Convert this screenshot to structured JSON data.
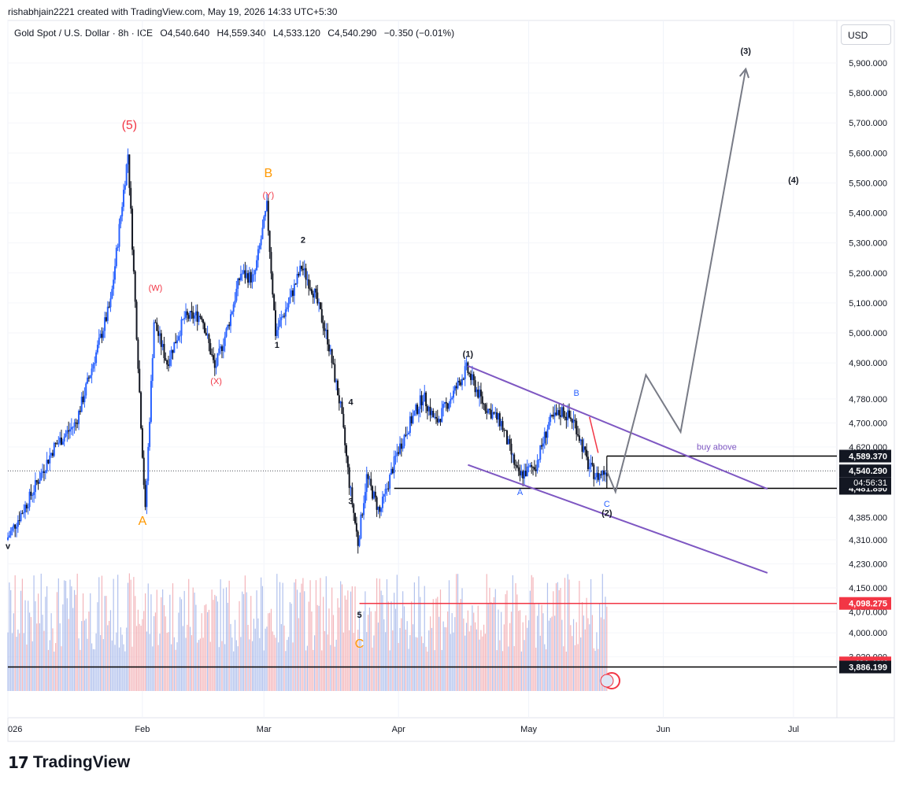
{
  "header": {
    "attribution": "rishabhjain2221 created with TradingView.com, May 19, 2026 14:33 UTC+5:30"
  },
  "symbol": {
    "title": "Gold Spot / U.S. Dollar · 8h · ICE",
    "open": "O4,540.640",
    "high": "H4,559.340",
    "low": "L4,533.120",
    "close": "C4,540.290",
    "change": "−0.350 (−0.01%)"
  },
  "currency_button": "USD",
  "footer": {
    "brand": "TradingView",
    "logo_glyph": "17"
  },
  "colors": {
    "up": "#2962ff",
    "down": "#131722",
    "channel": "#7e57c2",
    "projection": "#787b86",
    "red_level": "#f23645",
    "wave_red": "#f23645",
    "wave_orange": "#ff9800",
    "wave_blue": "#2962ff"
  },
  "chart_data": {
    "type": "candlestick",
    "title": "Gold Spot / U.S. Dollar · 8h · ICE",
    "timeframe": "8h",
    "currency": "USD",
    "x_tick_labels": [
      "026",
      "Feb",
      "Mar",
      "Apr",
      "May",
      "Jun",
      "Jul"
    ],
    "y_tick_labels": [
      5900,
      5800,
      5700,
      5600,
      5500,
      5400,
      5300,
      5200,
      5100,
      5000,
      4900,
      4780,
      4700,
      4620,
      4385,
      4310,
      4230,
      4150,
      4070,
      4000,
      3920,
      3885
    ],
    "ylim": [
      3850,
      5980
    ],
    "last_price": 4540.29,
    "countdown": "04:56:31",
    "price_tags": [
      {
        "label": "4,589.370",
        "value": 4589.37,
        "style": "black"
      },
      {
        "label": "4,540.290",
        "value": 4540.29,
        "style": "black"
      },
      {
        "label": "4,481.890",
        "value": 4481.89,
        "style": "black"
      },
      {
        "label": "4,098.275",
        "value": 4098.275,
        "style": "red"
      },
      {
        "label": "491.48K",
        "value": 3900,
        "style": "red"
      },
      {
        "label": "3,886.199",
        "value": 3886.199,
        "style": "black"
      }
    ],
    "volume_label": "491.48K",
    "price_path": [
      {
        "date": "2026-01-01",
        "price": 4310
      },
      {
        "date": "2026-01-06",
        "price": 4440
      },
      {
        "date": "2026-01-12",
        "price": 4620
      },
      {
        "date": "2026-01-17",
        "price": 4700
      },
      {
        "date": "2026-01-21",
        "price": 4900
      },
      {
        "date": "2026-01-25",
        "price": 5100
      },
      {
        "date": "2026-01-29",
        "price": 5598
      },
      {
        "date": "2026-02-02",
        "price": 4402
      },
      {
        "date": "2026-02-04",
        "price": 5040
      },
      {
        "date": "2026-02-07",
        "price": 4900
      },
      {
        "date": "2026-02-11",
        "price": 5050
      },
      {
        "date": "2026-02-15",
        "price": 5060
      },
      {
        "date": "2026-02-18",
        "price": 4880
      },
      {
        "date": "2026-02-21",
        "price": 5020
      },
      {
        "date": "2026-02-24",
        "price": 5200
      },
      {
        "date": "2026-02-27",
        "price": 5180
      },
      {
        "date": "2026-03-02",
        "price": 5420
      },
      {
        "date": "2026-03-04",
        "price": 5000
      },
      {
        "date": "2026-03-07",
        "price": 5100
      },
      {
        "date": "2026-03-10",
        "price": 5220
      },
      {
        "date": "2026-03-13",
        "price": 5130
      },
      {
        "date": "2026-03-16",
        "price": 4980
      },
      {
        "date": "2026-03-19",
        "price": 4750
      },
      {
        "date": "2026-03-21",
        "price": 4500
      },
      {
        "date": "2026-03-23",
        "price": 4300
      },
      {
        "date": "2026-03-25",
        "price": 4520
      },
      {
        "date": "2026-03-28",
        "price": 4400
      },
      {
        "date": "2026-04-01",
        "price": 4600
      },
      {
        "date": "2026-04-04",
        "price": 4700
      },
      {
        "date": "2026-04-07",
        "price": 4790
      },
      {
        "date": "2026-04-10",
        "price": 4700
      },
      {
        "date": "2026-04-14",
        "price": 4800
      },
      {
        "date": "2026-04-17",
        "price": 4880
      },
      {
        "date": "2026-04-21",
        "price": 4760
      },
      {
        "date": "2026-04-25",
        "price": 4700
      },
      {
        "date": "2026-04-29",
        "price": 4520
      },
      {
        "date": "2026-05-03",
        "price": 4560
      },
      {
        "date": "2026-05-06",
        "price": 4700
      },
      {
        "date": "2026-05-09",
        "price": 4740
      },
      {
        "date": "2026-05-12",
        "price": 4700
      },
      {
        "date": "2026-05-15",
        "price": 4560
      },
      {
        "date": "2026-05-17",
        "price": 4520
      },
      {
        "date": "2026-05-19",
        "price": 4540
      }
    ],
    "projection": [
      {
        "date": "2026-05-19",
        "price": 4540
      },
      {
        "date": "2026-05-21",
        "price": 4470
      },
      {
        "date": "2026-05-28",
        "price": 4860
      },
      {
        "date": "2026-06-05",
        "price": 4670
      },
      {
        "date": "2026-06-20",
        "price": 5880
      }
    ],
    "channel_upper": [
      {
        "date": "2026-04-17",
        "price": 4890
      },
      {
        "date": "2026-06-25",
        "price": 4480
      }
    ],
    "channel_lower": [
      {
        "date": "2026-04-17",
        "price": 4560
      },
      {
        "date": "2026-06-25",
        "price": 4200
      }
    ],
    "levels": [
      {
        "name": "buy-above",
        "price": 4589.37,
        "from": "2026-05-19",
        "label": "buy above"
      },
      {
        "name": "support",
        "price": 4481.89,
        "from": "2026-03-31"
      },
      {
        "name": "red-level",
        "price": 4098.275,
        "from": "2026-03-23"
      },
      {
        "name": "bottom-level",
        "price": 3886.199,
        "from": "2026-01-01"
      }
    ],
    "wave_labels": [
      {
        "text": "(5)",
        "date": "2026-01-29",
        "price": 5680,
        "color": "red",
        "size": 16
      },
      {
        "text": "A",
        "date": "2026-02-01",
        "price": 4360,
        "color": "orange",
        "size": 16
      },
      {
        "text": "(W)",
        "date": "2026-02-04",
        "price": 5140,
        "color": "red",
        "size": 11
      },
      {
        "text": "(X)",
        "date": "2026-02-18",
        "price": 4830,
        "color": "red",
        "size": 11
      },
      {
        "text": "B",
        "date": "2026-03-02",
        "price": 5520,
        "color": "orange",
        "size": 16
      },
      {
        "text": "(Y)",
        "date": "2026-03-02",
        "price": 5450,
        "color": "red",
        "size": 11
      },
      {
        "text": "1",
        "date": "2026-03-04",
        "price": 4950,
        "color": "black",
        "size": 11
      },
      {
        "text": "2",
        "date": "2026-03-10",
        "price": 5300,
        "color": "black",
        "size": 11
      },
      {
        "text": "4",
        "date": "2026-03-21",
        "price": 4760,
        "color": "black",
        "size": 11
      },
      {
        "text": "3",
        "date": "2026-03-21",
        "price": 4430,
        "color": "black",
        "size": 11
      },
      {
        "text": "5",
        "date": "2026-03-23",
        "price": 4050,
        "color": "black",
        "size": 11
      },
      {
        "text": "C",
        "date": "2026-03-23",
        "price": 3950,
        "color": "orange",
        "size": 16
      },
      {
        "text": "(1)",
        "date": "2026-04-17",
        "price": 4920,
        "color": "black",
        "size": 11
      },
      {
        "text": "A",
        "date": "2026-04-29",
        "price": 4460,
        "color": "blue",
        "size": 11
      },
      {
        "text": "B",
        "date": "2026-05-12",
        "price": 4790,
        "color": "blue",
        "size": 11
      },
      {
        "text": "C",
        "date": "2026-05-19",
        "price": 4420,
        "color": "blue",
        "size": 11
      },
      {
        "text": "(2)",
        "date": "2026-05-19",
        "price": 4390,
        "color": "black",
        "size": 11
      },
      {
        "text": "(3)",
        "date": "2026-06-20",
        "price": 5930,
        "color": "black",
        "size": 11
      },
      {
        "text": "(4)",
        "date": "2026-07-01",
        "price": 5500,
        "color": "black",
        "size": 11
      },
      {
        "text": "v",
        "date": "2026-01-01",
        "price": 4280,
        "color": "black",
        "size": 11
      }
    ]
  }
}
